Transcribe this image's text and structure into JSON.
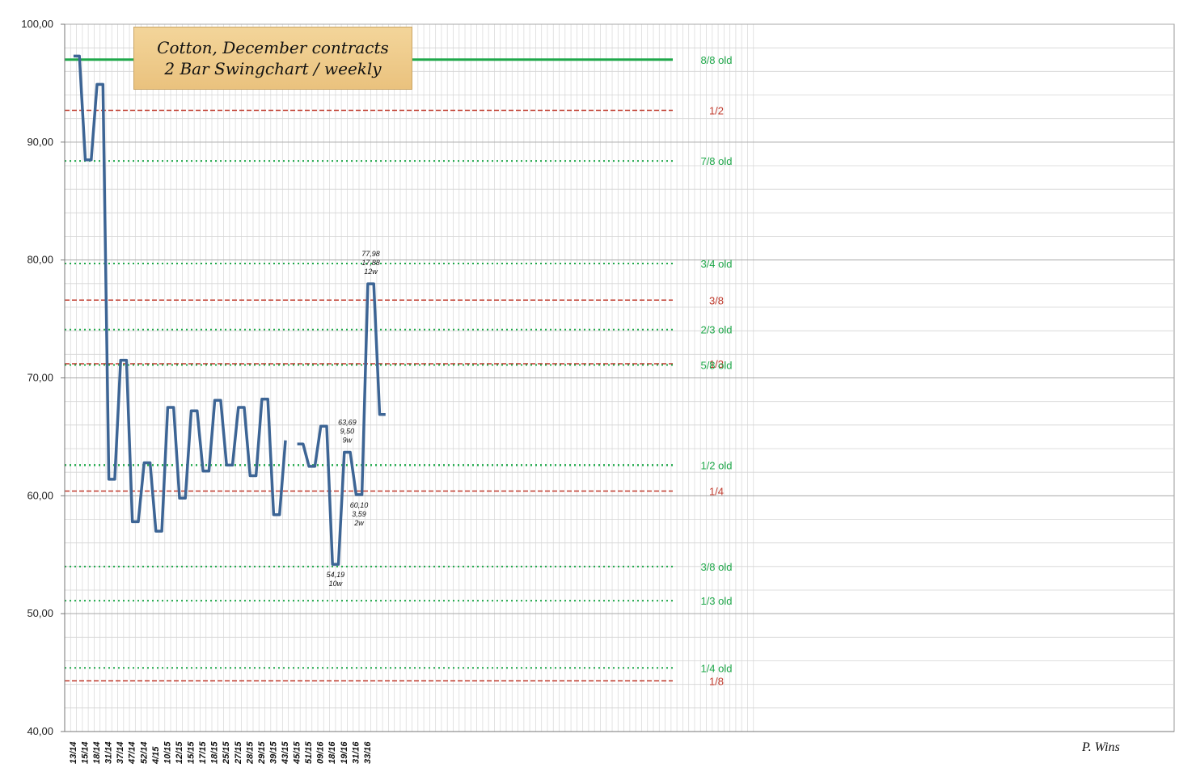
{
  "chart_data": {
    "type": "line",
    "title": "Cotton, December contracts",
    "subtitle": "2 Bar Swingchart / weekly",
    "credit": "P. Wins",
    "ylim": [
      40,
      100
    ],
    "y_ticks": [
      "100,00",
      "90,00",
      "80,00",
      "70,00",
      "60,00",
      "50,00",
      "40,00"
    ],
    "y_tick_values": [
      100,
      90,
      80,
      70,
      60,
      50,
      40
    ],
    "x_tick_labels": [
      "13/14",
      "15/14",
      "18/14",
      "31/14",
      "37/14",
      "47/14",
      "52/14",
      "4/15",
      "10/15",
      "12/15",
      "15/15",
      "17/15",
      "18/15",
      "25/15",
      "27/15",
      "28/15",
      "29/15",
      "39/15",
      "43/15",
      "45/15",
      "51/15",
      "09/16",
      "18/16",
      "19/16",
      "31/16",
      "33/16"
    ],
    "x_tick_step": 2,
    "total_slots": 115,
    "grid": true,
    "series": [
      {
        "color": "#3d6595",
        "segments": [
          [
            [
              0,
              97.3
            ],
            [
              1,
              97.3
            ],
            [
              2,
              88.5
            ],
            [
              3,
              88.5
            ],
            [
              4,
              94.9
            ],
            [
              5,
              94.9
            ],
            [
              6,
              61.4
            ],
            [
              7,
              61.4
            ],
            [
              8,
              71.5
            ],
            [
              9,
              71.5
            ],
            [
              10,
              57.8
            ],
            [
              11,
              57.8
            ],
            [
              12,
              62.8
            ],
            [
              13,
              62.8
            ],
            [
              14,
              57.0
            ],
            [
              15,
              57.0
            ],
            [
              16,
              67.5
            ],
            [
              17,
              67.5
            ],
            [
              18,
              59.8
            ],
            [
              19,
              59.8
            ],
            [
              20,
              67.2
            ],
            [
              21,
              67.2
            ],
            [
              22,
              62.1
            ],
            [
              23,
              62.1
            ],
            [
              24,
              68.1
            ],
            [
              25,
              68.1
            ],
            [
              26,
              62.6
            ],
            [
              27,
              62.6
            ],
            [
              28,
              67.5
            ],
            [
              29,
              67.5
            ],
            [
              30,
              61.7
            ],
            [
              31,
              61.7
            ],
            [
              32,
              68.2
            ],
            [
              33,
              68.2
            ],
            [
              34,
              58.4
            ],
            [
              35,
              58.4
            ],
            [
              36,
              64.7
            ]
          ],
          [
            [
              38,
              64.4
            ],
            [
              39,
              64.4
            ],
            [
              40,
              62.5
            ],
            [
              41,
              62.5
            ],
            [
              42,
              65.9
            ],
            [
              43,
              65.9
            ],
            [
              44,
              54.19
            ],
            [
              45,
              54.19
            ],
            [
              46,
              63.69
            ],
            [
              47,
              63.69
            ],
            [
              48,
              60.1
            ],
            [
              49,
              60.1
            ],
            [
              50,
              77.98
            ],
            [
              51,
              77.98
            ],
            [
              52,
              66.9
            ],
            [
              53,
              66.9
            ]
          ]
        ]
      }
    ],
    "levels": [
      {
        "label": "8/8 old",
        "value": 97.0,
        "color": "#1fa84a",
        "style": "solid",
        "width": 3
      },
      {
        "label": "1/2",
        "value": 92.7,
        "color": "#c0392b",
        "style": "dashed",
        "width": 1.5
      },
      {
        "label": "7/8 old",
        "value": 88.4,
        "color": "#1fa84a",
        "style": "dotted",
        "width": 2
      },
      {
        "label": "3/4 old",
        "value": 79.7,
        "color": "#1fa84a",
        "style": "dotted",
        "width": 2
      },
      {
        "label": "3/8",
        "value": 76.6,
        "color": "#c0392b",
        "style": "dashed",
        "width": 1.5
      },
      {
        "label": "2/3 old",
        "value": 74.1,
        "color": "#1fa84a",
        "style": "dotted",
        "width": 2
      },
      {
        "label": "1/3",
        "value": 71.2,
        "color": "#c0392b",
        "style": "dashed",
        "width": 1.5
      },
      {
        "label": "5/8 old",
        "value": 71.1,
        "color": "#1fa84a",
        "style": "dotted",
        "width": 2
      },
      {
        "label": "1/2 old",
        "value": 62.6,
        "color": "#1fa84a",
        "style": "dotted",
        "width": 2.5
      },
      {
        "label": "1/4",
        "value": 60.4,
        "color": "#c0392b",
        "style": "dashed",
        "width": 1.5
      },
      {
        "label": "3/8 old",
        "value": 54.0,
        "color": "#1fa84a",
        "style": "dotted",
        "width": 2
      },
      {
        "label": "1/3 old",
        "value": 51.1,
        "color": "#1fa84a",
        "style": "dotted",
        "width": 2
      },
      {
        "label": "1/4 old",
        "value": 45.4,
        "color": "#1fa84a",
        "style": "dotted",
        "width": 2
      },
      {
        "label": "1/8",
        "value": 44.3,
        "color": "#c0392b",
        "style": "dashed",
        "width": 1.5
      }
    ],
    "annotations": [
      {
        "slot": 50.5,
        "value": 77.98,
        "lines": [
          "77,98",
          "17,88",
          "12w"
        ],
        "pos": "above"
      },
      {
        "slot": 46.5,
        "value": 63.69,
        "lines": [
          "63,69",
          "9,50",
          "9w"
        ],
        "pos": "above"
      },
      {
        "slot": 48.5,
        "value": 60.1,
        "lines": [
          "60,10",
          "3,59",
          "2w"
        ],
        "pos": "below"
      },
      {
        "slot": 44.5,
        "value": 54.19,
        "lines": [
          "54,19",
          "10w"
        ],
        "pos": "below"
      }
    ]
  }
}
